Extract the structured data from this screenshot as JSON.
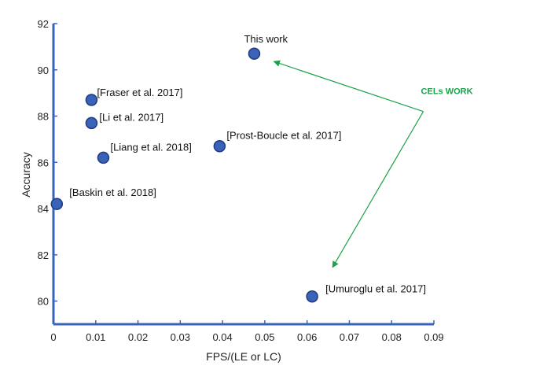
{
  "chart_data": {
    "type": "scatter",
    "xlabel": "FPS/(LE or LC)",
    "ylabel": "Accuracy",
    "xlim": [
      0,
      0.09
    ],
    "ylim": [
      79,
      92
    ],
    "xticks": [
      0,
      0.01,
      0.02,
      0.03,
      0.04,
      0.05,
      0.06,
      0.07,
      0.08,
      0.09
    ],
    "xtick_labels": [
      "0",
      "0.01",
      "0.02",
      "0.03",
      "0.04",
      "0.05",
      "0.06",
      "0.07",
      "0.08",
      "0.09"
    ],
    "yticks": [
      80,
      82,
      84,
      86,
      88,
      90,
      92
    ],
    "ytick_labels": [
      "80",
      "82",
      "84",
      "86",
      "88",
      "90",
      "92"
    ],
    "grid": false,
    "points": [
      {
        "label": "This work",
        "x": 0.0475,
        "y": 90.7
      },
      {
        "label": "[Fraser et al. 2017]",
        "x": 0.009,
        "y": 88.7
      },
      {
        "label": "[Li et al. 2017]",
        "x": 0.009,
        "y": 87.7
      },
      {
        "label": "[Liang et al. 2018]",
        "x": 0.0118,
        "y": 86.2
      },
      {
        "label": "[Prost-Boucle et al. 2017]",
        "x": 0.0393,
        "y": 86.7
      },
      {
        "label": "[Baskin et al. 2018]",
        "x": 0.0008,
        "y": 84.2
      },
      {
        "label": "[Umuroglu et al. 2017]",
        "x": 0.0612,
        "y": 80.2
      }
    ],
    "annotation": {
      "text": "CELs WORK",
      "x": 0.0875,
      "y": 88.2
    },
    "colors": {
      "marker_fill": "#3a62b8",
      "marker_edge": "#1e3d80",
      "axis": "#3a63b8",
      "annotation": "#1aa348"
    }
  }
}
